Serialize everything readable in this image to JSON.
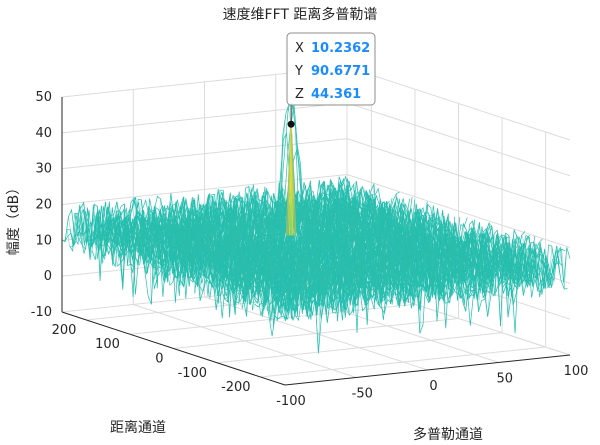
{
  "chart_data": {
    "type": "surface",
    "title": "速度维FFT 距离多普勒谱",
    "xlabel": "多普勒通道",
    "ylabel": "距离通道",
    "zlabel": "幅度（dB）",
    "xlim": [
      -100,
      100
    ],
    "ylim": [
      -256,
      256
    ],
    "zlim": [
      -10,
      50
    ],
    "x_ticks": [
      "-100",
      "-50",
      "0",
      "50",
      "100"
    ],
    "y_ticks": [
      "-200",
      "-100",
      "0",
      "100",
      "200"
    ],
    "z_ticks": [
      "-10",
      "0",
      "10",
      "20",
      "30",
      "40",
      "50"
    ],
    "noise_floor_db": [
      0,
      25
    ],
    "peak": {
      "x": 10.2362,
      "y": 90.6771,
      "z": 44.361
    },
    "datatip": [
      {
        "key": "X",
        "value": "10.2362"
      },
      {
        "key": "Y",
        "value": "90.6771"
      },
      {
        "key": "Z",
        "value": "44.361"
      }
    ],
    "grid": true,
    "colormap": "parula"
  }
}
